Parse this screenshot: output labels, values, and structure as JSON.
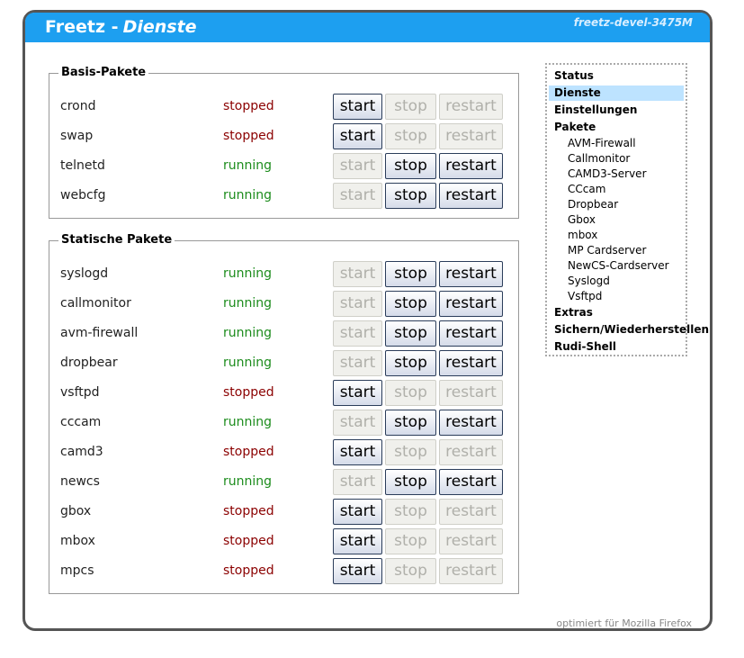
{
  "header": {
    "title": "Freetz -",
    "page": "Dienste",
    "host": "freetz-devel-3475M"
  },
  "buttons": [
    "start",
    "stop",
    "restart"
  ],
  "sections": [
    {
      "legend": "Basis-Pakete",
      "rows": [
        {
          "name": "crond",
          "status": "stopped",
          "enabled": [
            true,
            false,
            false
          ]
        },
        {
          "name": "swap",
          "status": "stopped",
          "enabled": [
            true,
            false,
            false
          ]
        },
        {
          "name": "telnetd",
          "status": "running",
          "enabled": [
            false,
            true,
            true
          ]
        },
        {
          "name": "webcfg",
          "status": "running",
          "enabled": [
            false,
            true,
            true
          ]
        }
      ]
    },
    {
      "legend": "Statische Pakete",
      "rows": [
        {
          "name": "syslogd",
          "status": "running",
          "enabled": [
            false,
            true,
            true
          ]
        },
        {
          "name": "callmonitor",
          "status": "running",
          "enabled": [
            false,
            true,
            true
          ]
        },
        {
          "name": "avm-firewall",
          "status": "running",
          "enabled": [
            false,
            true,
            true
          ]
        },
        {
          "name": "dropbear",
          "status": "running",
          "enabled": [
            false,
            true,
            true
          ]
        },
        {
          "name": "vsftpd",
          "status": "stopped",
          "enabled": [
            true,
            false,
            false
          ]
        },
        {
          "name": "cccam",
          "status": "running",
          "enabled": [
            false,
            true,
            true
          ]
        },
        {
          "name": "camd3",
          "status": "stopped",
          "enabled": [
            true,
            false,
            false
          ]
        },
        {
          "name": "newcs",
          "status": "running",
          "enabled": [
            false,
            true,
            true
          ]
        },
        {
          "name": "gbox",
          "status": "stopped",
          "enabled": [
            true,
            false,
            false
          ]
        },
        {
          "name": "mbox",
          "status": "stopped",
          "enabled": [
            true,
            false,
            false
          ]
        },
        {
          "name": "mpcs",
          "status": "stopped",
          "enabled": [
            true,
            false,
            false
          ]
        }
      ]
    }
  ],
  "menu": [
    {
      "label": "Status",
      "level": 0,
      "active": false
    },
    {
      "label": "Dienste",
      "level": 0,
      "active": true
    },
    {
      "label": "Einstellungen",
      "level": 0,
      "active": false
    },
    {
      "label": "Pakete",
      "level": 0,
      "active": false
    },
    {
      "label": "AVM-Firewall",
      "level": 1,
      "active": false
    },
    {
      "label": "Callmonitor",
      "level": 1,
      "active": false
    },
    {
      "label": "CAMD3-Server",
      "level": 1,
      "active": false
    },
    {
      "label": "CCcam",
      "level": 1,
      "active": false
    },
    {
      "label": "Dropbear",
      "level": 1,
      "active": false
    },
    {
      "label": "Gbox",
      "level": 1,
      "active": false
    },
    {
      "label": "mbox",
      "level": 1,
      "active": false
    },
    {
      "label": "MP Cardserver",
      "level": 1,
      "active": false
    },
    {
      "label": "NewCS-Cardserver",
      "level": 1,
      "active": false
    },
    {
      "label": "Syslogd",
      "level": 1,
      "active": false
    },
    {
      "label": "Vsftpd",
      "level": 1,
      "active": false
    },
    {
      "label": "Extras",
      "level": 0,
      "active": false
    },
    {
      "label": "Sichern/Wiederherstellen",
      "level": 0,
      "active": false
    },
    {
      "label": "Rudi-Shell",
      "level": 0,
      "active": false
    }
  ],
  "footer": "optimiert für Mozilla Firefox"
}
